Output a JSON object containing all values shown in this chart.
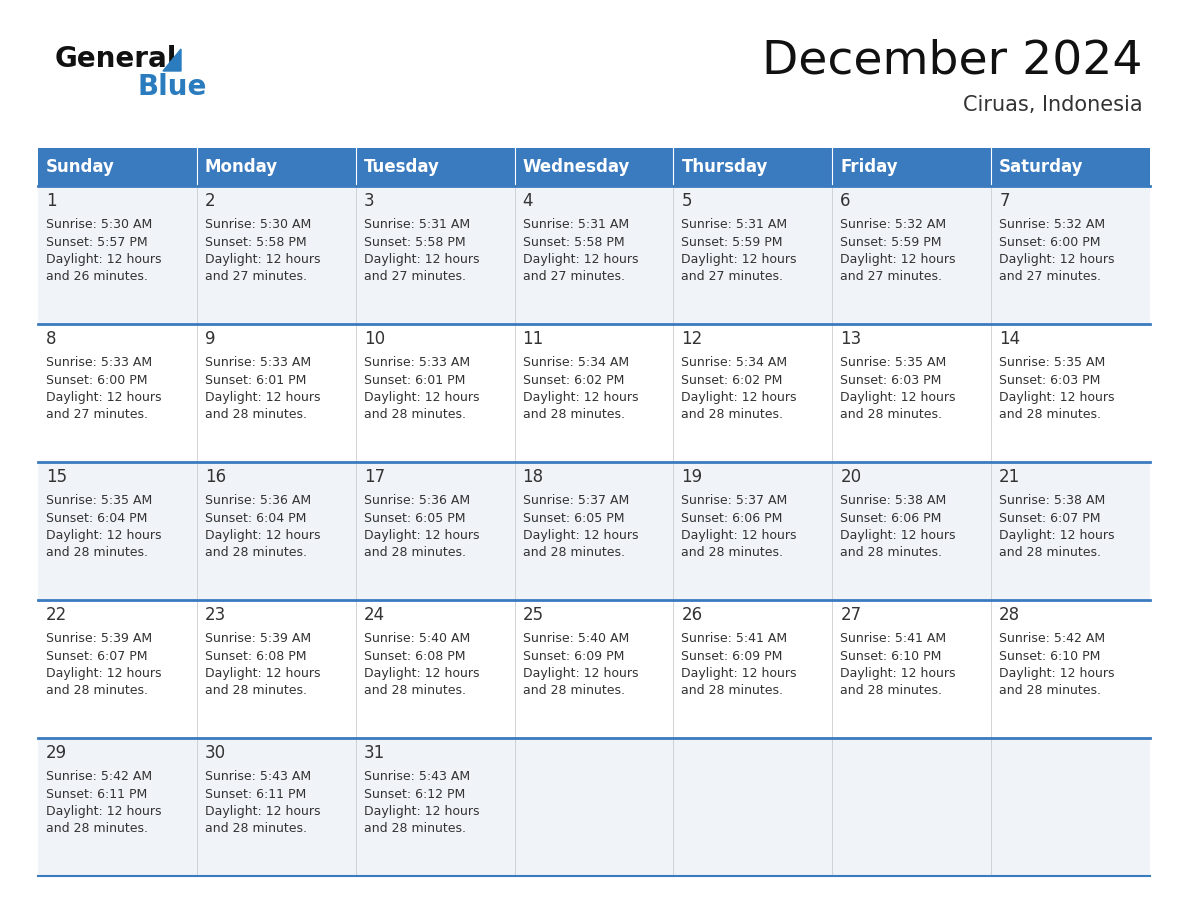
{
  "title": "December 2024",
  "subtitle": "Ciruas, Indonesia",
  "header_bg": "#3a7abf",
  "header_text": "#ffffff",
  "header_days": [
    "Sunday",
    "Monday",
    "Tuesday",
    "Wednesday",
    "Thursday",
    "Friday",
    "Saturday"
  ],
  "row_bg_odd": "#f0f4f8",
  "row_bg_even": "#ffffff",
  "border_color": "#3a7abf",
  "thin_border_color": "#aaaaaa",
  "text_color": "#333333",
  "day_num_color": "#333333",
  "calendar": [
    [
      {
        "day": "1",
        "sunrise": "5:30 AM",
        "sunset": "5:57 PM",
        "daylight1": "Daylight: 12 hours",
        "daylight2": "and 26 minutes."
      },
      {
        "day": "2",
        "sunrise": "5:30 AM",
        "sunset": "5:58 PM",
        "daylight1": "Daylight: 12 hours",
        "daylight2": "and 27 minutes."
      },
      {
        "day": "3",
        "sunrise": "5:31 AM",
        "sunset": "5:58 PM",
        "daylight1": "Daylight: 12 hours",
        "daylight2": "and 27 minutes."
      },
      {
        "day": "4",
        "sunrise": "5:31 AM",
        "sunset": "5:58 PM",
        "daylight1": "Daylight: 12 hours",
        "daylight2": "and 27 minutes."
      },
      {
        "day": "5",
        "sunrise": "5:31 AM",
        "sunset": "5:59 PM",
        "daylight1": "Daylight: 12 hours",
        "daylight2": "and 27 minutes."
      },
      {
        "day": "6",
        "sunrise": "5:32 AM",
        "sunset": "5:59 PM",
        "daylight1": "Daylight: 12 hours",
        "daylight2": "and 27 minutes."
      },
      {
        "day": "7",
        "sunrise": "5:32 AM",
        "sunset": "6:00 PM",
        "daylight1": "Daylight: 12 hours",
        "daylight2": "and 27 minutes."
      }
    ],
    [
      {
        "day": "8",
        "sunrise": "5:33 AM",
        "sunset": "6:00 PM",
        "daylight1": "Daylight: 12 hours",
        "daylight2": "and 27 minutes."
      },
      {
        "day": "9",
        "sunrise": "5:33 AM",
        "sunset": "6:01 PM",
        "daylight1": "Daylight: 12 hours",
        "daylight2": "and 28 minutes."
      },
      {
        "day": "10",
        "sunrise": "5:33 AM",
        "sunset": "6:01 PM",
        "daylight1": "Daylight: 12 hours",
        "daylight2": "and 28 minutes."
      },
      {
        "day": "11",
        "sunrise": "5:34 AM",
        "sunset": "6:02 PM",
        "daylight1": "Daylight: 12 hours",
        "daylight2": "and 28 minutes."
      },
      {
        "day": "12",
        "sunrise": "5:34 AM",
        "sunset": "6:02 PM",
        "daylight1": "Daylight: 12 hours",
        "daylight2": "and 28 minutes."
      },
      {
        "day": "13",
        "sunrise": "5:35 AM",
        "sunset": "6:03 PM",
        "daylight1": "Daylight: 12 hours",
        "daylight2": "and 28 minutes."
      },
      {
        "day": "14",
        "sunrise": "5:35 AM",
        "sunset": "6:03 PM",
        "daylight1": "Daylight: 12 hours",
        "daylight2": "and 28 minutes."
      }
    ],
    [
      {
        "day": "15",
        "sunrise": "5:35 AM",
        "sunset": "6:04 PM",
        "daylight1": "Daylight: 12 hours",
        "daylight2": "and 28 minutes."
      },
      {
        "day": "16",
        "sunrise": "5:36 AM",
        "sunset": "6:04 PM",
        "daylight1": "Daylight: 12 hours",
        "daylight2": "and 28 minutes."
      },
      {
        "day": "17",
        "sunrise": "5:36 AM",
        "sunset": "6:05 PM",
        "daylight1": "Daylight: 12 hours",
        "daylight2": "and 28 minutes."
      },
      {
        "day": "18",
        "sunrise": "5:37 AM",
        "sunset": "6:05 PM",
        "daylight1": "Daylight: 12 hours",
        "daylight2": "and 28 minutes."
      },
      {
        "day": "19",
        "sunrise": "5:37 AM",
        "sunset": "6:06 PM",
        "daylight1": "Daylight: 12 hours",
        "daylight2": "and 28 minutes."
      },
      {
        "day": "20",
        "sunrise": "5:38 AM",
        "sunset": "6:06 PM",
        "daylight1": "Daylight: 12 hours",
        "daylight2": "and 28 minutes."
      },
      {
        "day": "21",
        "sunrise": "5:38 AM",
        "sunset": "6:07 PM",
        "daylight1": "Daylight: 12 hours",
        "daylight2": "and 28 minutes."
      }
    ],
    [
      {
        "day": "22",
        "sunrise": "5:39 AM",
        "sunset": "6:07 PM",
        "daylight1": "Daylight: 12 hours",
        "daylight2": "and 28 minutes."
      },
      {
        "day": "23",
        "sunrise": "5:39 AM",
        "sunset": "6:08 PM",
        "daylight1": "Daylight: 12 hours",
        "daylight2": "and 28 minutes."
      },
      {
        "day": "24",
        "sunrise": "5:40 AM",
        "sunset": "6:08 PM",
        "daylight1": "Daylight: 12 hours",
        "daylight2": "and 28 minutes."
      },
      {
        "day": "25",
        "sunrise": "5:40 AM",
        "sunset": "6:09 PM",
        "daylight1": "Daylight: 12 hours",
        "daylight2": "and 28 minutes."
      },
      {
        "day": "26",
        "sunrise": "5:41 AM",
        "sunset": "6:09 PM",
        "daylight1": "Daylight: 12 hours",
        "daylight2": "and 28 minutes."
      },
      {
        "day": "27",
        "sunrise": "5:41 AM",
        "sunset": "6:10 PM",
        "daylight1": "Daylight: 12 hours",
        "daylight2": "and 28 minutes."
      },
      {
        "day": "28",
        "sunrise": "5:42 AM",
        "sunset": "6:10 PM",
        "daylight1": "Daylight: 12 hours",
        "daylight2": "and 28 minutes."
      }
    ],
    [
      {
        "day": "29",
        "sunrise": "5:42 AM",
        "sunset": "6:11 PM",
        "daylight1": "Daylight: 12 hours",
        "daylight2": "and 28 minutes."
      },
      {
        "day": "30",
        "sunrise": "5:43 AM",
        "sunset": "6:11 PM",
        "daylight1": "Daylight: 12 hours",
        "daylight2": "and 28 minutes."
      },
      {
        "day": "31",
        "sunrise": "5:43 AM",
        "sunset": "6:12 PM",
        "daylight1": "Daylight: 12 hours",
        "daylight2": "and 28 minutes."
      },
      null,
      null,
      null,
      null
    ]
  ],
  "logo_text1": "General",
  "logo_text2": "Blue",
  "logo_color1": "#111111",
  "logo_color2": "#2b7cbf",
  "title_fontsize": 34,
  "subtitle_fontsize": 15,
  "header_fontsize": 12,
  "daynum_fontsize": 12,
  "cell_fontsize": 9
}
